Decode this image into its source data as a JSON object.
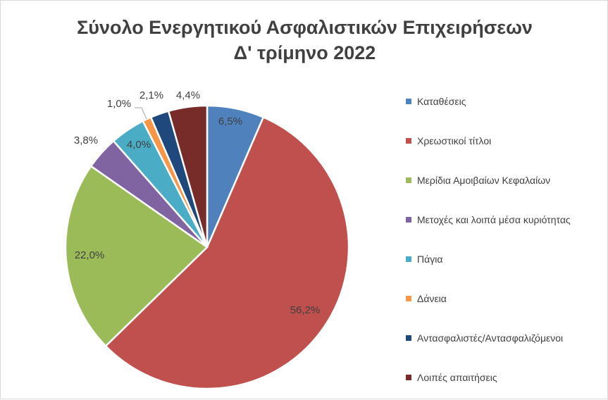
{
  "chart_data": {
    "type": "pie",
    "title": "Σύνολο Ενεργητικού Ασφαλιστικών Επιχειρήσεων",
    "subtitle": "Δ' τρίμηνο 2022",
    "legend_position": "right",
    "slices": [
      {
        "label": "Καταθέσεις",
        "value": 6.5,
        "display": "6,5%",
        "color": "#4f81bd"
      },
      {
        "label": "Χρεωστικοί τίτλοι",
        "value": 56.2,
        "display": "56,2%",
        "color": "#c0504d"
      },
      {
        "label": "Μερίδια Αμοιβαίων Κεφαλαίων",
        "value": 22.0,
        "display": "22,0%",
        "color": "#9bbb59"
      },
      {
        "label": "Μετοχές και λοιπά μέσα κυριότητας",
        "value": 3.8,
        "display": "3,8%",
        "color": "#8064a2"
      },
      {
        "label": "Πάγια",
        "value": 4.0,
        "display": "4,0%",
        "color": "#4bacc6"
      },
      {
        "label": "Δάνεια",
        "value": 1.0,
        "display": "1,0%",
        "color": "#f79646"
      },
      {
        "label": "Αντασφαλιστές/Αντασφαλιζόμενοι",
        "value": 2.1,
        "display": "2,1%",
        "color": "#1f497d"
      },
      {
        "label": "Λοιπές απαιτήσεις",
        "value": 4.4,
        "display": "4,4%",
        "color": "#772c2a"
      }
    ]
  }
}
